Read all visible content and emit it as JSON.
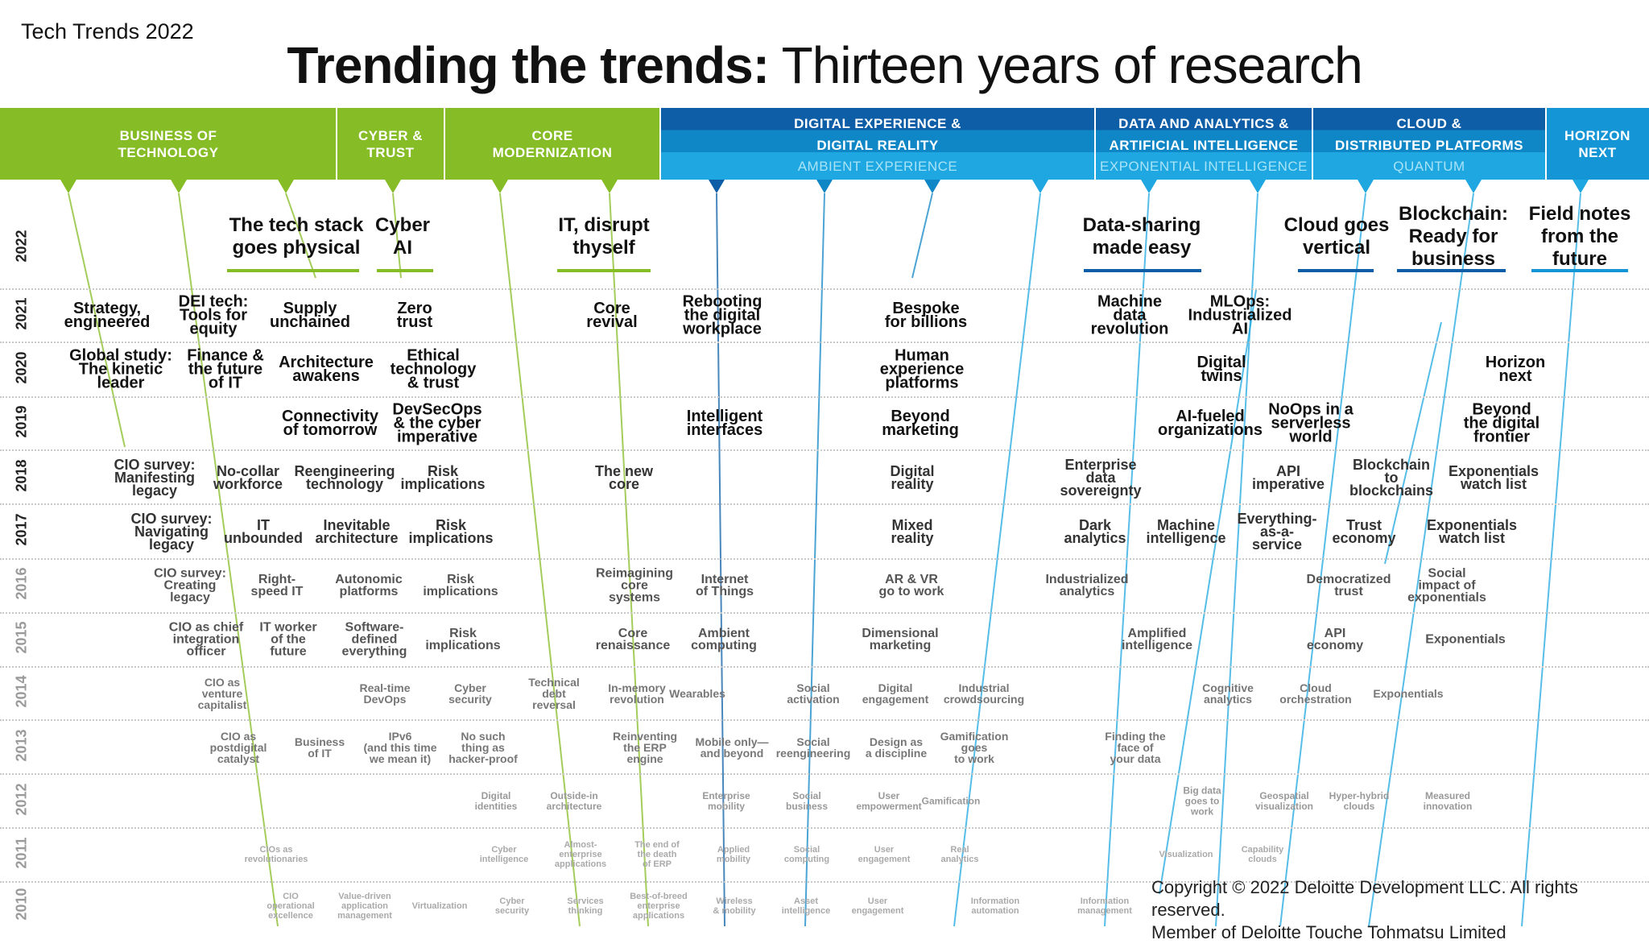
{
  "report_tag": "Tech Trends 2022",
  "title": {
    "bold": "Trending the trends:",
    "light": "Thirteen years of research"
  },
  "colors": {
    "green": "#86bc25",
    "blue_dark": "#0d5ea6",
    "blue_mid": "#0f86c6",
    "blue_light": "#1ea7e1",
    "blue_horizon": "#1496d6",
    "text_dark": "#111111"
  },
  "headers": [
    {
      "lines": [
        "BUSINESS OF",
        "TECHNOLOGY"
      ],
      "sub": "",
      "color": "#86bc25"
    },
    {
      "lines": [
        "CYBER &",
        "TRUST"
      ],
      "sub": "",
      "color": "#86bc25"
    },
    {
      "lines": [
        "CORE",
        "MODERNIZATION"
      ],
      "sub": "",
      "color": "#86bc25"
    },
    {
      "lines": [
        "DIGITAL EXPERIENCE &",
        "DIGITAL REALITY"
      ],
      "sub": "AMBIENT EXPERIENCE",
      "color": "#0d5ea6"
    },
    {
      "lines": [
        "DATA AND ANALYTICS &",
        "ARTIFICIAL INTELLIGENCE"
      ],
      "sub": "EXPONENTIAL INTELLIGENCE",
      "color": "#0d5ea6"
    },
    {
      "lines": [
        "CLOUD &",
        "DISTRIBUTED PLATFORMS"
      ],
      "sub": "QUANTUM",
      "color": "#0d5ea6"
    },
    {
      "lines": [
        "HORIZON",
        "NEXT"
      ],
      "sub": "",
      "color": "#1496d6"
    }
  ],
  "years": [
    "2022",
    "2021",
    "2020",
    "2019",
    "2018",
    "2017",
    "2016",
    "2015",
    "2014",
    "2013",
    "2012",
    "2011",
    "2010"
  ],
  "trends_2022": [
    {
      "lines": [
        "The tech stack",
        "goes physical"
      ],
      "color": "#86bc25"
    },
    {
      "lines": [
        "Cyber",
        "AI"
      ],
      "color": "#86bc25"
    },
    {
      "lines": [
        "IT, disrupt",
        "thyself"
      ],
      "color": "#86bc25"
    },
    {
      "lines": [
        "Data-sharing",
        "made easy"
      ],
      "color": "#0d5ea6"
    },
    {
      "lines": [
        "Cloud goes",
        "vertical"
      ],
      "color": "#0d5ea6"
    },
    {
      "lines": [
        "Blockchain:",
        "Ready for",
        "business"
      ],
      "color": "#0d5ea6"
    },
    {
      "lines": [
        "Field notes",
        "from the",
        "future"
      ],
      "color": "#1496d6"
    }
  ],
  "trends": [
    {
      "lines": [
        "Strategy,",
        "engineered"
      ],
      "year": "2021"
    },
    {
      "lines": [
        "DEI tech:",
        "Tools for",
        "equity"
      ],
      "year": "2021"
    },
    {
      "lines": [
        "Supply",
        "unchained"
      ],
      "year": "2021"
    },
    {
      "lines": [
        "Zero",
        "trust"
      ],
      "year": "2021"
    },
    {
      "lines": [
        "Core",
        "revival"
      ],
      "year": "2021"
    },
    {
      "lines": [
        "Rebooting",
        "the digital",
        "workplace"
      ],
      "year": "2021"
    },
    {
      "lines": [
        "Bespoke",
        "for billions"
      ],
      "year": "2021"
    },
    {
      "lines": [
        "Machine",
        "data",
        "revolution"
      ],
      "year": "2021"
    },
    {
      "lines": [
        "MLOps:",
        "Industrialized",
        "AI"
      ],
      "year": "2021"
    },
    {
      "lines": [
        "Global study:",
        "The kinetic",
        "leader"
      ],
      "year": "2020"
    },
    {
      "lines": [
        "Finance &",
        "the future",
        "of IT"
      ],
      "year": "2020"
    },
    {
      "lines": [
        "Architecture",
        "awakens"
      ],
      "year": "2020"
    },
    {
      "lines": [
        "Ethical",
        "technology",
        "& trust"
      ],
      "year": "2020"
    },
    {
      "lines": [
        "Human",
        "experience",
        "platforms"
      ],
      "year": "2020"
    },
    {
      "lines": [
        "Digital",
        "twins"
      ],
      "year": "2020"
    },
    {
      "lines": [
        "Horizon",
        "next"
      ],
      "year": "2020"
    },
    {
      "lines": [
        "Connectivity",
        "of tomorrow"
      ],
      "year": "2019"
    },
    {
      "lines": [
        "DevSecOps",
        "& the cyber",
        "imperative"
      ],
      "year": "2019"
    },
    {
      "lines": [
        "Intelligent",
        "interfaces"
      ],
      "year": "2019"
    },
    {
      "lines": [
        "Beyond",
        "marketing"
      ],
      "year": "2019"
    },
    {
      "lines": [
        "AI-fueled",
        "organizations"
      ],
      "year": "2019"
    },
    {
      "lines": [
        "NoOps in a",
        "serverless",
        "world"
      ],
      "year": "2019"
    },
    {
      "lines": [
        "Beyond",
        "the digital",
        "frontier"
      ],
      "year": "2019"
    },
    {
      "lines": [
        "CIO survey:",
        "Manifesting",
        "legacy"
      ],
      "year": "2018"
    },
    {
      "lines": [
        "No-collar",
        "workforce"
      ],
      "year": "2018"
    },
    {
      "lines": [
        "Reengineering",
        "technology"
      ],
      "year": "2018"
    },
    {
      "lines": [
        "Risk",
        "implications"
      ],
      "year": "2018"
    },
    {
      "lines": [
        "The new",
        "core"
      ],
      "year": "2018"
    },
    {
      "lines": [
        "Digital",
        "reality"
      ],
      "year": "2018"
    },
    {
      "lines": [
        "Enterprise",
        "data",
        "sovereignty"
      ],
      "year": "2018"
    },
    {
      "lines": [
        "API",
        "imperative"
      ],
      "year": "2018"
    },
    {
      "lines": [
        "Blockchain",
        "to",
        "blockchains"
      ],
      "year": "2018"
    },
    {
      "lines": [
        "Exponentials",
        "watch list"
      ],
      "year": "2018"
    },
    {
      "lines": [
        "CIO survey:",
        "Navigating",
        "legacy"
      ],
      "year": "2017"
    },
    {
      "lines": [
        "IT",
        "unbounded"
      ],
      "year": "2017"
    },
    {
      "lines": [
        "Inevitable",
        "architecture"
      ],
      "year": "2017"
    },
    {
      "lines": [
        "Risk",
        "implications"
      ],
      "year": "2017"
    },
    {
      "lines": [
        "Mixed",
        "reality"
      ],
      "year": "2017"
    },
    {
      "lines": [
        "Dark",
        "analytics"
      ],
      "year": "2017"
    },
    {
      "lines": [
        "Machine",
        "intelligence"
      ],
      "year": "2017"
    },
    {
      "lines": [
        "Everything-",
        "as-a-",
        "service"
      ],
      "year": "2017"
    },
    {
      "lines": [
        "Trust",
        "economy"
      ],
      "year": "2017"
    },
    {
      "lines": [
        "Exponentials",
        "watch list"
      ],
      "year": "2017"
    },
    {
      "lines": [
        "CIO survey:",
        "Creating",
        "legacy"
      ],
      "year": "2016"
    },
    {
      "lines": [
        "Right-",
        "speed IT"
      ],
      "year": "2016"
    },
    {
      "lines": [
        "Autonomic",
        "platforms"
      ],
      "year": "2016"
    },
    {
      "lines": [
        "Risk",
        "implications"
      ],
      "year": "2016"
    },
    {
      "lines": [
        "Reimagining",
        "core",
        "systems"
      ],
      "year": "2016"
    },
    {
      "lines": [
        "Internet",
        "of Things"
      ],
      "year": "2016"
    },
    {
      "lines": [
        "AR & VR",
        "go to work"
      ],
      "year": "2016"
    },
    {
      "lines": [
        "Industrialized",
        "analytics"
      ],
      "year": "2016"
    },
    {
      "lines": [
        "Democratized",
        "trust"
      ],
      "year": "2016"
    },
    {
      "lines": [
        "Social",
        "impact of",
        "exponentials"
      ],
      "year": "2016"
    },
    {
      "lines": [
        "CIO as chief",
        "integration",
        "officer"
      ],
      "year": "2015"
    },
    {
      "lines": [
        "IT worker",
        "of the",
        "future"
      ],
      "year": "2015"
    },
    {
      "lines": [
        "Software-",
        "defined",
        "everything"
      ],
      "year": "2015"
    },
    {
      "lines": [
        "Risk",
        "implications"
      ],
      "year": "2015"
    },
    {
      "lines": [
        "Core",
        "renaissance"
      ],
      "year": "2015"
    },
    {
      "lines": [
        "Ambient",
        "computing"
      ],
      "year": "2015"
    },
    {
      "lines": [
        "Dimensional",
        "marketing"
      ],
      "year": "2015"
    },
    {
      "lines": [
        "Amplified",
        "intelligence"
      ],
      "year": "2015"
    },
    {
      "lines": [
        "API",
        "economy"
      ],
      "year": "2015"
    },
    {
      "lines": [
        "Exponentials"
      ],
      "year": "2015"
    },
    {
      "lines": [
        "CIO as",
        "venture",
        "capitalist"
      ],
      "year": "2014"
    },
    {
      "lines": [
        "Real-time",
        "DevOps"
      ],
      "year": "2014"
    },
    {
      "lines": [
        "Cyber",
        "security"
      ],
      "year": "2014"
    },
    {
      "lines": [
        "Technical",
        "debt",
        "reversal"
      ],
      "year": "2014"
    },
    {
      "lines": [
        "In-memory",
        "revolution"
      ],
      "year": "2014"
    },
    {
      "lines": [
        "Wearables"
      ],
      "year": "2014"
    },
    {
      "lines": [
        "Social",
        "activation"
      ],
      "year": "2014"
    },
    {
      "lines": [
        "Digital",
        "engagement"
      ],
      "year": "2014"
    },
    {
      "lines": [
        "Industrial",
        "crowdsourcing"
      ],
      "year": "2014"
    },
    {
      "lines": [
        "Cognitive",
        "analytics"
      ],
      "year": "2014"
    },
    {
      "lines": [
        "Cloud",
        "orchestration"
      ],
      "year": "2014"
    },
    {
      "lines": [
        "Exponentials"
      ],
      "year": "2014"
    },
    {
      "lines": [
        "CIO as",
        "postdigital",
        "catalyst"
      ],
      "year": "2013"
    },
    {
      "lines": [
        "Business",
        "of IT"
      ],
      "year": "2013"
    },
    {
      "lines": [
        "IPv6",
        "(and this time",
        "we mean it)"
      ],
      "year": "2013"
    },
    {
      "lines": [
        "No such",
        "thing as",
        "hacker-proof"
      ],
      "year": "2013"
    },
    {
      "lines": [
        "Reinventing",
        "the ERP",
        "engine"
      ],
      "year": "2013"
    },
    {
      "lines": [
        "Mobile only—",
        "and beyond"
      ],
      "year": "2013"
    },
    {
      "lines": [
        "Social",
        "reengineering"
      ],
      "year": "2013"
    },
    {
      "lines": [
        "Design as",
        "a discipline"
      ],
      "year": "2013"
    },
    {
      "lines": [
        "Gamification",
        "goes",
        "to work"
      ],
      "year": "2013"
    },
    {
      "lines": [
        "Finding the",
        "face of",
        "your data"
      ],
      "year": "2013"
    },
    {
      "lines": [
        "Digital",
        "identities"
      ],
      "year": "2012"
    },
    {
      "lines": [
        "Outside-in",
        "architecture"
      ],
      "year": "2012"
    },
    {
      "lines": [
        "Enterprise",
        "mobility"
      ],
      "year": "2012"
    },
    {
      "lines": [
        "Social",
        "business"
      ],
      "year": "2012"
    },
    {
      "lines": [
        "User",
        "empowerment"
      ],
      "year": "2012"
    },
    {
      "lines": [
        "Gamification"
      ],
      "year": "2012"
    },
    {
      "lines": [
        "Big data",
        "goes to",
        "work"
      ],
      "year": "2012"
    },
    {
      "lines": [
        "Geospatial",
        "visualization"
      ],
      "year": "2012"
    },
    {
      "lines": [
        "Hyper-hybrid",
        "clouds"
      ],
      "year": "2012"
    },
    {
      "lines": [
        "Measured",
        "innovation"
      ],
      "year": "2012"
    },
    {
      "lines": [
        "CIOs as",
        "revolutionaries"
      ],
      "year": "2011"
    },
    {
      "lines": [
        "Cyber",
        "intelligence"
      ],
      "year": "2011"
    },
    {
      "lines": [
        "Almost-",
        "enterprise",
        "applications"
      ],
      "year": "2011"
    },
    {
      "lines": [
        "The end of",
        "the death",
        "of ERP"
      ],
      "year": "2011"
    },
    {
      "lines": [
        "Applied",
        "mobility"
      ],
      "year": "2011"
    },
    {
      "lines": [
        "Social",
        "computing"
      ],
      "year": "2011"
    },
    {
      "lines": [
        "User",
        "engagement"
      ],
      "year": "2011"
    },
    {
      "lines": [
        "Real",
        "analytics"
      ],
      "year": "2011"
    },
    {
      "lines": [
        "Visualization"
      ],
      "year": "2011"
    },
    {
      "lines": [
        "Capability",
        "clouds"
      ],
      "year": "2011"
    },
    {
      "lines": [
        "CIO",
        "operational",
        "excellence"
      ],
      "year": "2010"
    },
    {
      "lines": [
        "Value-driven",
        "application",
        "management"
      ],
      "year": "2010"
    },
    {
      "lines": [
        "Virtualization"
      ],
      "year": "2010"
    },
    {
      "lines": [
        "Cyber",
        "security"
      ],
      "year": "2010"
    },
    {
      "lines": [
        "Services",
        "thinking"
      ],
      "year": "2010"
    },
    {
      "lines": [
        "Best-of-breed",
        "enterprise",
        "applications"
      ],
      "year": "2010"
    },
    {
      "lines": [
        "Wireless",
        "& mobility"
      ],
      "year": "2010"
    },
    {
      "lines": [
        "Asset",
        "intelligence"
      ],
      "year": "2010"
    },
    {
      "lines": [
        "User",
        "engagement"
      ],
      "year": "2010"
    },
    {
      "lines": [
        "Information",
        "automation"
      ],
      "year": "2010"
    },
    {
      "lines": [
        "Information",
        "management"
      ],
      "year": "2010"
    }
  ],
  "copyright": [
    "Copyright © 2022 Deloitte Development LLC. All rights reserved.",
    "Member of Deloitte Touche Tohmatsu Limited"
  ]
}
